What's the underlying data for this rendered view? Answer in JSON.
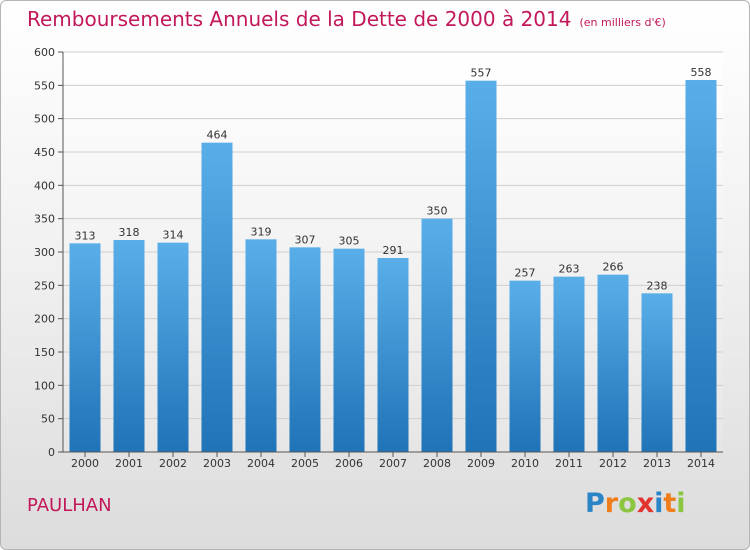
{
  "header": {
    "title": "Remboursements Annuels de la Dette de 2000 à 2014",
    "unit": "(en milliers d'€)"
  },
  "footer": {
    "city": "PAULHAN",
    "logo_letters": [
      {
        "char": "P",
        "color": "#2b84c6"
      },
      {
        "char": "r",
        "color": "#ef7d1a"
      },
      {
        "char": "o",
        "color": "#8cc540"
      },
      {
        "char": "x",
        "color": "#e3342f"
      },
      {
        "char": "i",
        "color": "#2b84c6"
      },
      {
        "char": "t",
        "color": "#ef7d1a"
      },
      {
        "char": "i",
        "color": "#8cc540"
      }
    ]
  },
  "chart_data": {
    "type": "bar",
    "title": "Remboursements Annuels de la Dette de 2000 à 2014",
    "unit": "(en milliers d'€)",
    "categories": [
      "2000",
      "2001",
      "2002",
      "2003",
      "2004",
      "2005",
      "2006",
      "2007",
      "2008",
      "2009",
      "2010",
      "2011",
      "2012",
      "2013",
      "2014"
    ],
    "values": [
      313,
      318,
      314,
      464,
      319,
      307,
      305,
      291,
      350,
      557,
      257,
      263,
      266,
      238,
      558
    ],
    "ylim": [
      0,
      600
    ],
    "yticks": [
      0,
      50,
      100,
      150,
      200,
      250,
      300,
      350,
      400,
      450,
      500,
      550,
      600
    ],
    "grid": true,
    "bar_color_top": "#5aaee8",
    "bar_color_bottom": "#1f73b7"
  }
}
